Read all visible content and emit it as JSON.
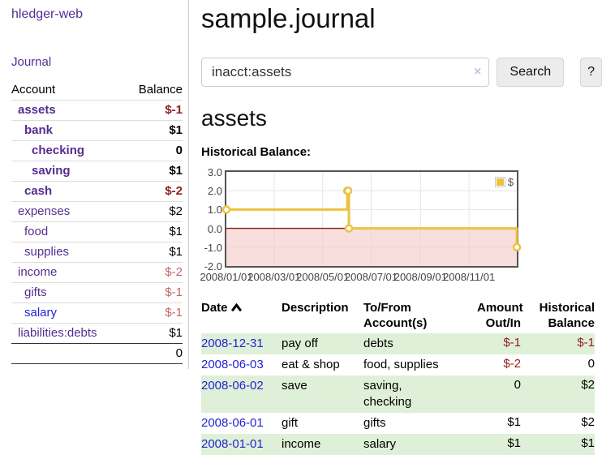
{
  "colors": {
    "purple_link": "#552d90",
    "blue_link": "#2323d4",
    "negative_dark": "#8f1d1d",
    "negative_light": "#c06868",
    "row_stripe_green": "#dff0d8",
    "series_gold": "#edc240",
    "below_zero_pink": "#f6caca",
    "zero_line_red": "#8b1a1a",
    "chart_border_gray": "#545454"
  },
  "sidebar": {
    "app_title": "hledger-web",
    "journal_link": "Journal",
    "account_header": "Account",
    "balance_header": "Balance",
    "accounts": [
      {
        "name": "assets",
        "indent": 1,
        "balance": "$-1",
        "bold": true,
        "neg": "dark"
      },
      {
        "name": "bank",
        "indent": 2,
        "balance": "$1",
        "bold": true
      },
      {
        "name": "checking",
        "indent": 3,
        "balance": "0",
        "bold": true
      },
      {
        "name": "saving",
        "indent": 3,
        "balance": "$1",
        "bold": true
      },
      {
        "name": "cash",
        "indent": 2,
        "balance": "$-2",
        "bold": true,
        "neg": "dark"
      },
      {
        "name": "expenses",
        "indent": 1,
        "balance": "$2"
      },
      {
        "name": "food",
        "indent": 2,
        "balance": "$1"
      },
      {
        "name": "supplies",
        "indent": 2,
        "balance": "$1"
      },
      {
        "name": "income",
        "indent": 1,
        "balance": "$-2",
        "neg": "light"
      },
      {
        "name": "gifts",
        "indent": 2,
        "balance": "$-1",
        "neg": "light"
      },
      {
        "name": "salary",
        "indent": 2,
        "balance": "$-1",
        "neg": "light",
        "link": "blue"
      },
      {
        "name": "liabilities:debts",
        "indent": 1,
        "balance": "$1"
      }
    ],
    "total": "0"
  },
  "main": {
    "title": "sample.journal",
    "search": {
      "value": "inacct:assets",
      "clear_icon": "×",
      "button_label": "Search",
      "help_label": "?"
    },
    "account_heading": "assets",
    "chart_title_label": "Historical Balance:"
  },
  "chart_data": {
    "type": "line",
    "title": "Historical Balance",
    "step": true,
    "legend": [
      {
        "label": "$",
        "color": "#edc240"
      }
    ],
    "legend_position": "top-right",
    "grid": true,
    "ylim": [
      -2,
      3
    ],
    "y_ticks": [
      3.0,
      2.0,
      1.0,
      0.0,
      -1.0,
      -2.0
    ],
    "x_range": [
      "2008-01-01",
      "2008-12-31"
    ],
    "x_tick_labels": [
      "2008/01/01",
      "2008/03/01",
      "2008/05/01",
      "2008/07/01",
      "2008/09/01",
      "2008/11/01"
    ],
    "fill_below_zero": true,
    "points": [
      {
        "date": "2008-01-01",
        "y": 1
      },
      {
        "date": "2008-06-01",
        "y": 2
      },
      {
        "date": "2008-06-02",
        "y": 2
      },
      {
        "date": "2008-06-03",
        "y": 0
      },
      {
        "date": "2008-12-31",
        "y": -1
      }
    ]
  },
  "transactions": {
    "headers": [
      "Date",
      "Description",
      "To/From\nAccount(s)",
      "Amount\nOut/In",
      "Historical\nBalance"
    ],
    "sort_column": "Date",
    "sort_direction": "ascending",
    "rows": [
      {
        "date": "2008-12-31",
        "description": "pay off",
        "accounts": "debts",
        "amount": "$-1",
        "balance": "$-1"
      },
      {
        "date": "2008-06-03",
        "description": "eat & shop",
        "accounts": "food, supplies",
        "amount": "$-2",
        "balance": "0"
      },
      {
        "date": "2008-06-02",
        "description": "save",
        "accounts": "saving,\nchecking",
        "amount": "0",
        "balance": "$2"
      },
      {
        "date": "2008-06-01",
        "description": "gift",
        "accounts": "gifts",
        "amount": "$1",
        "balance": "$2"
      },
      {
        "date": "2008-01-01",
        "description": "income",
        "accounts": "salary",
        "amount": "$1",
        "balance": "$1"
      }
    ]
  }
}
